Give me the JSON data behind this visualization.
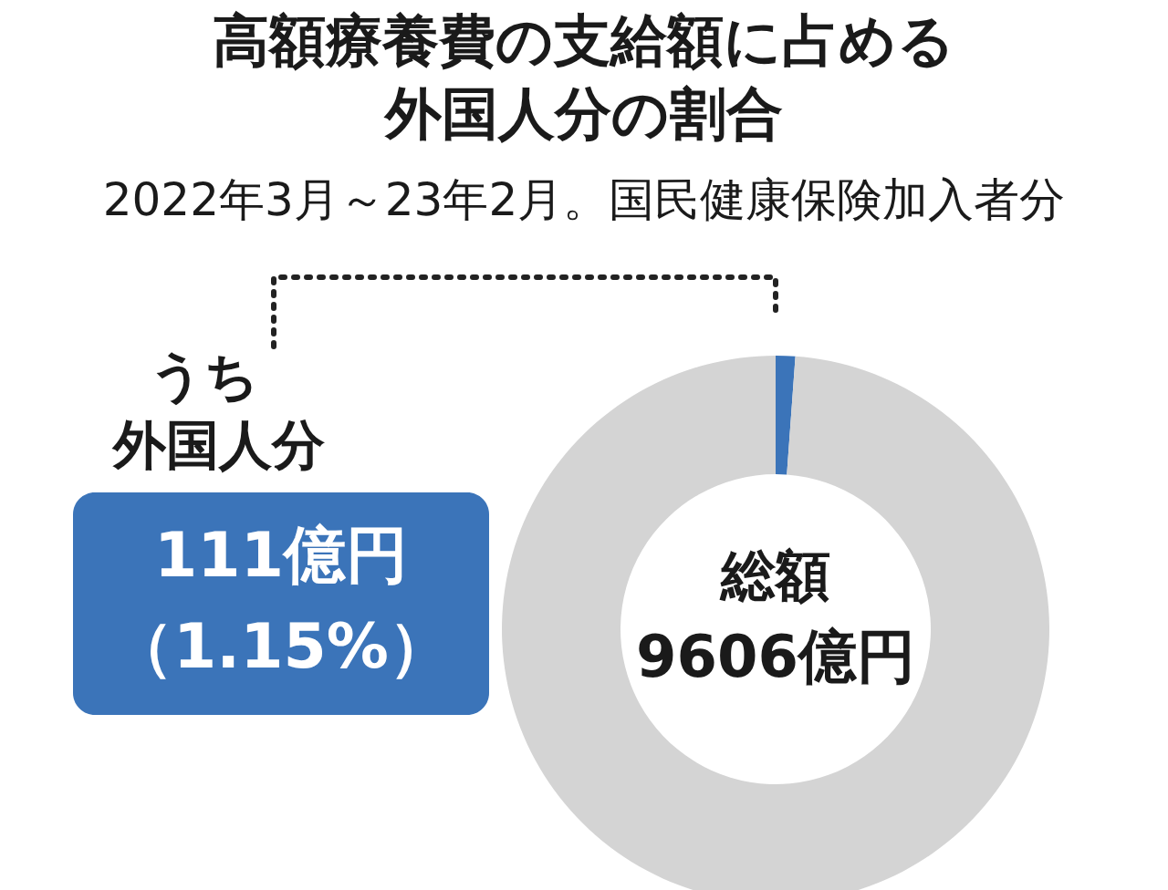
{
  "chart_data": {
    "type": "donut",
    "title": "高額療養費の支給額に占める外国人分の割合",
    "subtitle": "2022年3月～23年2月。国民健康保険加入者分",
    "categories": [
      null,
      null
    ],
    "values": [
      1.15,
      98.85
    ],
    "colors": [
      "#3b74b9",
      "#d4d4d4"
    ],
    "annotations": [
      "うち外国人分",
      "総額",
      "9606億円",
      "111億円",
      "（1.15%）"
    ]
  }
}
